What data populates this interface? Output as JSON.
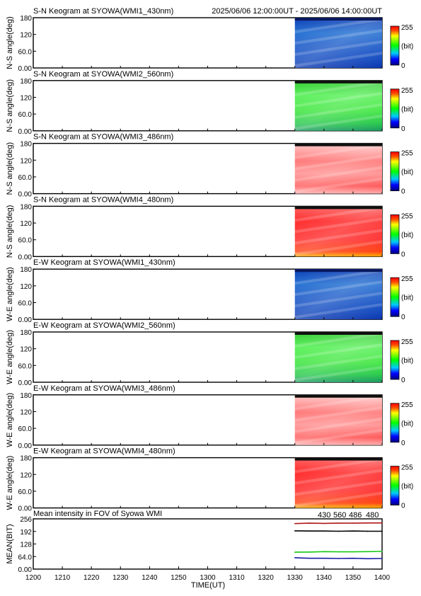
{
  "header_time_range": "2025/06/06 12:00:00UT - 2025/06/06 14:00:00UT",
  "colorbar": {
    "max_label": "255",
    "unit_label": "(bit)",
    "min_label": "0"
  },
  "panels": [
    {
      "title": "S-N Keogram at SYOWA(WMI1_430nm)",
      "ylabel": "N-S angle(deg)",
      "scheme": "blue"
    },
    {
      "title": "S-N Keogram at SYOWA(WMI2_560nm)",
      "ylabel": "N-S angle(deg)",
      "scheme": "green"
    },
    {
      "title": "S-N Keogram at SYOWA(WMI3_486nm)",
      "ylabel": "N-S angle(deg)",
      "scheme": "pink"
    },
    {
      "title": "S-N Keogram at SYOWA(WMI4_480nm)",
      "ylabel": "N-S angle(deg)",
      "scheme": "red"
    },
    {
      "title": "E-W Keogram at SYOWA(WMI1_430nm)",
      "ylabel": "W-E angle(deg)",
      "scheme": "blue"
    },
    {
      "title": "E-W Keogram at SYOWA(WMI2_560nm)",
      "ylabel": "W-E angle(deg)",
      "scheme": "green"
    },
    {
      "title": "E-W Keogram at SYOWA(WMI3_486nm)",
      "ylabel": "W-E angle(deg)",
      "scheme": "pink"
    },
    {
      "title": "E-W Keogram at SYOWA(WMI4_480nm)",
      "ylabel": "W-E angle(deg)",
      "scheme": "red"
    }
  ],
  "keogram_yticks": [
    "180",
    "120",
    "60.0",
    "0.00"
  ],
  "keogram_yticks_values": [
    180,
    120,
    60,
    0
  ],
  "colors": {
    "blue": "#1040c8",
    "green": "#30e030",
    "pink": "#ff9aa0",
    "red": "#ff2020",
    "nm430": "#1a1aa6",
    "nm560": "#18c818",
    "nm486": "#b01818",
    "nm480": "#000000"
  },
  "chart_data": {
    "type": "line",
    "title": "Mean intensity in FOV of Syowa WMI",
    "xlabel": "TIME(UT)",
    "ylabel": "MEAN(BIT)",
    "x_ticks": [
      "1200",
      "1210",
      "1220",
      "1230",
      "1240",
      "1250",
      "1300",
      "1310",
      "1320",
      "1330",
      "1340",
      "1350",
      "1400"
    ],
    "y_ticks": [
      "256",
      "192",
      "128",
      "64.0",
      "0.00"
    ],
    "xlim_minutes_ut": [
      720,
      840
    ],
    "ylim": [
      0,
      256
    ],
    "data_start_minutes_ut": 810,
    "series": [
      {
        "name": "430",
        "color": "#1a1aa6",
        "x": [
          810,
          815,
          820,
          825,
          830,
          835,
          840
        ],
        "values": [
          58,
          55,
          55,
          54,
          55,
          53,
          54
        ]
      },
      {
        "name": "560",
        "color": "#18c818",
        "x": [
          810,
          815,
          820,
          825,
          830,
          835,
          840
        ],
        "values": [
          86,
          87,
          89,
          88,
          88,
          89,
          90
        ]
      },
      {
        "name": "486",
        "color": "#b01818",
        "x": [
          810,
          815,
          820,
          825,
          830,
          835,
          840
        ],
        "values": [
          232,
          234,
          233,
          234,
          234,
          235,
          235
        ]
      },
      {
        "name": "480",
        "color": "#000000",
        "x": [
          810,
          815,
          820,
          825,
          830,
          835,
          840
        ],
        "values": [
          195,
          194,
          194,
          193,
          194,
          193,
          193
        ]
      }
    ]
  }
}
